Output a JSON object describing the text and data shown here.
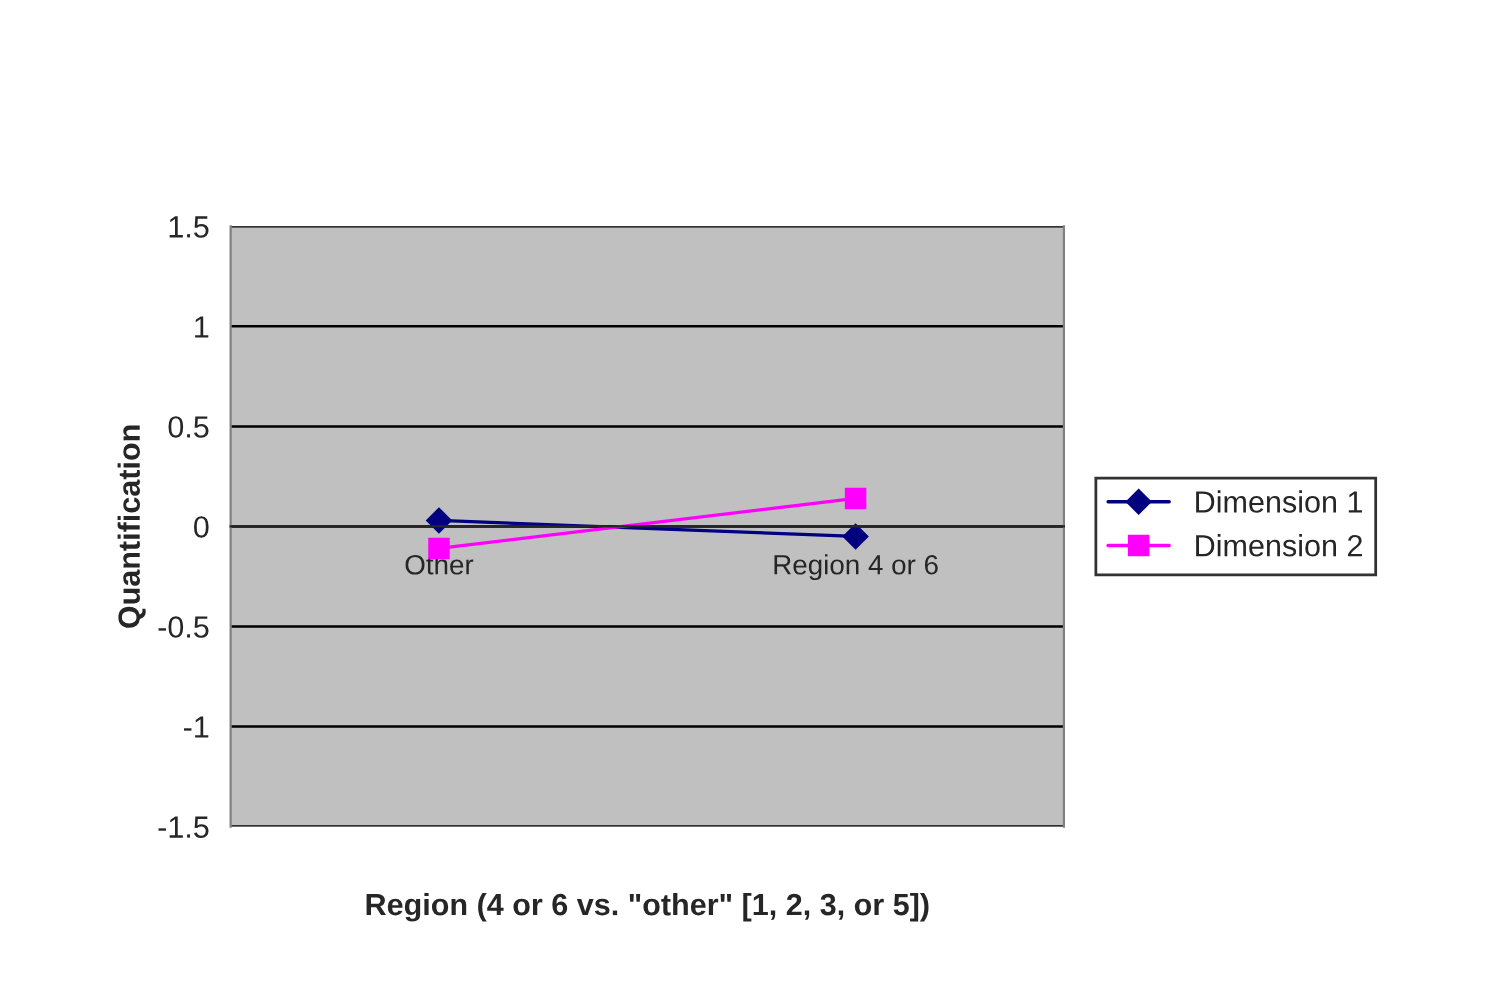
{
  "chart_data": {
    "type": "line",
    "xlabel": "Region (4 or 6 vs. \"other\" [1, 2, 3, or 5])",
    "ylabel": "Quantification",
    "categories": [
      "Other",
      "Region 4 or 6"
    ],
    "series": [
      {
        "name": "Dimension 1",
        "color": "#000080",
        "marker": "diamond",
        "values": [
          0.03,
          -0.05
        ]
      },
      {
        "name": "Dimension 2",
        "color": "#ff00ff",
        "marker": "square",
        "values": [
          -0.11,
          0.14
        ]
      }
    ],
    "ylim": [
      -1.5,
      1.5
    ],
    "yticks": [
      -1.5,
      -1,
      -0.5,
      0,
      0.5,
      1,
      1.5
    ],
    "grid": "y",
    "legend": "right",
    "line_style": "solid"
  }
}
